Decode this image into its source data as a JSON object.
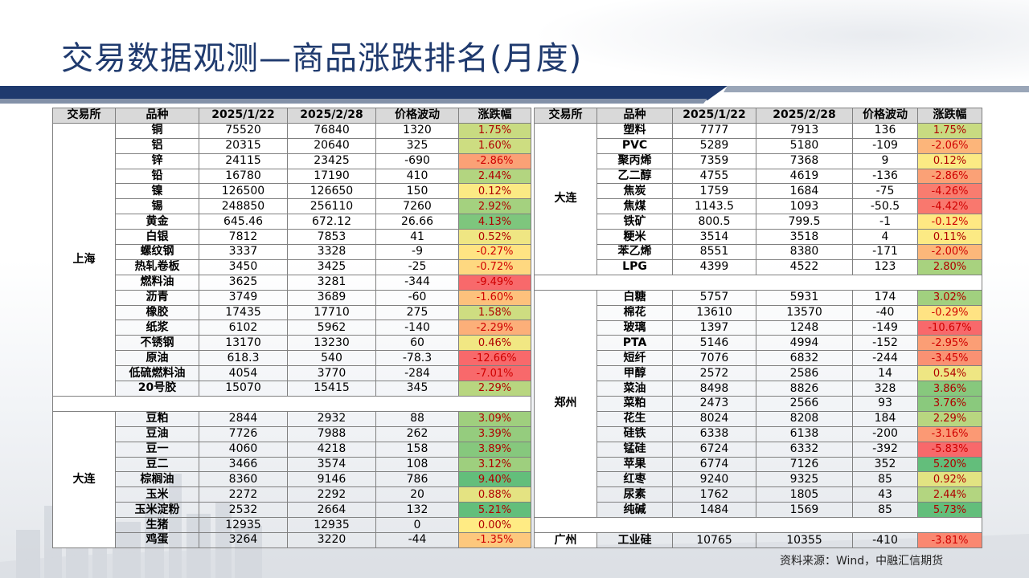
{
  "title": "交易数据观测—商品涨跌排名(月度)",
  "source": "资料来源：Wind，中融汇信期货",
  "colors": {
    "title": "#1f3a6e",
    "header_bg": "#d9d9d9",
    "band_dark": "#1f3a6e",
    "up_strong": "#63be7b",
    "down_strong": "#f8696b",
    "neutral": "#ffeb84"
  },
  "headers": [
    "交易所",
    "品种",
    "2025/1/22",
    "2025/2/28",
    "价格波动",
    "涨跌幅"
  ],
  "left_groups": [
    {
      "exchange": "上海",
      "rows": [
        {
          "name": "铜",
          "v1": "75520",
          "v2": "76840",
          "chg": "1320",
          "pct": "1.75%",
          "p": 1.75
        },
        {
          "name": "铝",
          "v1": "20315",
          "v2": "20640",
          "chg": "325",
          "pct": "1.60%",
          "p": 1.6
        },
        {
          "name": "锌",
          "v1": "24115",
          "v2": "23425",
          "chg": "-690",
          "pct": "-2.86%",
          "p": -2.86
        },
        {
          "name": "铅",
          "v1": "16780",
          "v2": "17190",
          "chg": "410",
          "pct": "2.44%",
          "p": 2.44
        },
        {
          "name": "镍",
          "v1": "126500",
          "v2": "126650",
          "chg": "150",
          "pct": "0.12%",
          "p": 0.12
        },
        {
          "name": "锡",
          "v1": "248850",
          "v2": "256110",
          "chg": "7260",
          "pct": "2.92%",
          "p": 2.92
        },
        {
          "name": "黄金",
          "v1": "645.46",
          "v2": "672.12",
          "chg": "26.66",
          "pct": "4.13%",
          "p": 4.13
        },
        {
          "name": "白银",
          "v1": "7812",
          "v2": "7853",
          "chg": "41",
          "pct": "0.52%",
          "p": 0.52
        },
        {
          "name": "螺纹钢",
          "v1": "3337",
          "v2": "3328",
          "chg": "-9",
          "pct": "-0.27%",
          "p": -0.27
        },
        {
          "name": "热轧卷板",
          "v1": "3450",
          "v2": "3425",
          "chg": "-25",
          "pct": "-0.72%",
          "p": -0.72
        },
        {
          "name": "燃料油",
          "v1": "3625",
          "v2": "3281",
          "chg": "-344",
          "pct": "-9.49%",
          "p": -9.49
        },
        {
          "name": "沥青",
          "v1": "3749",
          "v2": "3689",
          "chg": "-60",
          "pct": "-1.60%",
          "p": -1.6
        },
        {
          "name": "橡胶",
          "v1": "17435",
          "v2": "17710",
          "chg": "275",
          "pct": "1.58%",
          "p": 1.58
        },
        {
          "name": "纸浆",
          "v1": "6102",
          "v2": "5962",
          "chg": "-140",
          "pct": "-2.29%",
          "p": -2.29
        },
        {
          "name": "不锈钢",
          "v1": "13170",
          "v2": "13230",
          "chg": "60",
          "pct": "0.46%",
          "p": 0.46
        },
        {
          "name": "原油",
          "v1": "618.3",
          "v2": "540",
          "chg": "-78.3",
          "pct": "-12.66%",
          "p": -12.66
        },
        {
          "name": "低硫燃料油",
          "v1": "4054",
          "v2": "3770",
          "chg": "-284",
          "pct": "-7.01%",
          "p": -7.01
        },
        {
          "name": "20号胶",
          "v1": "15070",
          "v2": "15415",
          "chg": "345",
          "pct": "2.29%",
          "p": 2.29
        }
      ]
    },
    {
      "exchange": "大连",
      "rows": [
        {
          "name": "豆粕",
          "v1": "2844",
          "v2": "2932",
          "chg": "88",
          "pct": "3.09%",
          "p": 3.09
        },
        {
          "name": "豆油",
          "v1": "7726",
          "v2": "7988",
          "chg": "262",
          "pct": "3.39%",
          "p": 3.39
        },
        {
          "name": "豆一",
          "v1": "4060",
          "v2": "4218",
          "chg": "158",
          "pct": "3.89%",
          "p": 3.89
        },
        {
          "name": "豆二",
          "v1": "3466",
          "v2": "3574",
          "chg": "108",
          "pct": "3.12%",
          "p": 3.12
        },
        {
          "name": "棕榈油",
          "v1": "8360",
          "v2": "9146",
          "chg": "786",
          "pct": "9.40%",
          "p": 9.4
        },
        {
          "name": "玉米",
          "v1": "2272",
          "v2": "2292",
          "chg": "20",
          "pct": "0.88%",
          "p": 0.88
        },
        {
          "name": "玉米淀粉",
          "v1": "2532",
          "v2": "2664",
          "chg": "132",
          "pct": "5.21%",
          "p": 5.21
        },
        {
          "name": "生猪",
          "v1": "12935",
          "v2": "12935",
          "chg": "0",
          "pct": "0.00%",
          "p": 0.0
        },
        {
          "name": "鸡蛋",
          "v1": "3264",
          "v2": "3220",
          "chg": "-44",
          "pct": "-1.35%",
          "p": -1.35
        }
      ]
    }
  ],
  "right_groups": [
    {
      "exchange": "大连",
      "rows": [
        {
          "name": "塑料",
          "v1": "7777",
          "v2": "7913",
          "chg": "136",
          "pct": "1.75%",
          "p": 1.75
        },
        {
          "name": "PVC",
          "v1": "5289",
          "v2": "5180",
          "chg": "-109",
          "pct": "-2.06%",
          "p": -2.06
        },
        {
          "name": "聚丙烯",
          "v1": "7359",
          "v2": "7368",
          "chg": "9",
          "pct": "0.12%",
          "p": 0.12
        },
        {
          "name": "乙二醇",
          "v1": "4755",
          "v2": "4619",
          "chg": "-136",
          "pct": "-2.86%",
          "p": -2.86
        },
        {
          "name": "焦炭",
          "v1": "1759",
          "v2": "1684",
          "chg": "-75",
          "pct": "-4.26%",
          "p": -4.26
        },
        {
          "name": "焦煤",
          "v1": "1143.5",
          "v2": "1093",
          "chg": "-50.5",
          "pct": "-4.42%",
          "p": -4.42
        },
        {
          "name": "铁矿",
          "v1": "800.5",
          "v2": "799.5",
          "chg": "-1",
          "pct": "-0.12%",
          "p": -0.12
        },
        {
          "name": "粳米",
          "v1": "3514",
          "v2": "3518",
          "chg": "4",
          "pct": "0.11%",
          "p": 0.11
        },
        {
          "name": "苯乙烯",
          "v1": "8551",
          "v2": "8380",
          "chg": "-171",
          "pct": "-2.00%",
          "p": -2.0
        },
        {
          "name": "LPG",
          "v1": "4399",
          "v2": "4522",
          "chg": "123",
          "pct": "2.80%",
          "p": 2.8
        }
      ]
    },
    {
      "exchange": "郑州",
      "rows": [
        {
          "name": "白糖",
          "v1": "5757",
          "v2": "5931",
          "chg": "174",
          "pct": "3.02%",
          "p": 3.02
        },
        {
          "name": "棉花",
          "v1": "13610",
          "v2": "13570",
          "chg": "-40",
          "pct": "-0.29%",
          "p": -0.29
        },
        {
          "name": "玻璃",
          "v1": "1397",
          "v2": "1248",
          "chg": "-149",
          "pct": "-10.67%",
          "p": -10.67
        },
        {
          "name": "PTA",
          "v1": "5146",
          "v2": "4994",
          "chg": "-152",
          "pct": "-2.95%",
          "p": -2.95
        },
        {
          "name": "短纤",
          "v1": "7076",
          "v2": "6832",
          "chg": "-244",
          "pct": "-3.45%",
          "p": -3.45
        },
        {
          "name": "甲醇",
          "v1": "2572",
          "v2": "2586",
          "chg": "14",
          "pct": "0.54%",
          "p": 0.54
        },
        {
          "name": "菜油",
          "v1": "8498",
          "v2": "8826",
          "chg": "328",
          "pct": "3.86%",
          "p": 3.86
        },
        {
          "name": "菜粕",
          "v1": "2473",
          "v2": "2566",
          "chg": "93",
          "pct": "3.76%",
          "p": 3.76
        },
        {
          "name": "花生",
          "v1": "8024",
          "v2": "8208",
          "chg": "184",
          "pct": "2.29%",
          "p": 2.29
        },
        {
          "name": "硅铁",
          "v1": "6338",
          "v2": "6138",
          "chg": "-200",
          "pct": "-3.16%",
          "p": -3.16
        },
        {
          "name": "锰硅",
          "v1": "6724",
          "v2": "6332",
          "chg": "-392",
          "pct": "-5.83%",
          "p": -5.83
        },
        {
          "name": "苹果",
          "v1": "6774",
          "v2": "7126",
          "chg": "352",
          "pct": "5.20%",
          "p": 5.2
        },
        {
          "name": "红枣",
          "v1": "9240",
          "v2": "9325",
          "chg": "85",
          "pct": "0.92%",
          "p": 0.92
        },
        {
          "name": "尿素",
          "v1": "1762",
          "v2": "1805",
          "chg": "43",
          "pct": "2.44%",
          "p": 2.44
        },
        {
          "name": "纯碱",
          "v1": "1484",
          "v2": "1569",
          "chg": "85",
          "pct": "5.73%",
          "p": 5.73
        }
      ]
    },
    {
      "exchange": "广州",
      "rows": [
        {
          "name": "工业硅",
          "v1": "10765",
          "v2": "10355",
          "chg": "-410",
          "pct": "-3.81%",
          "p": -3.81
        }
      ]
    }
  ]
}
